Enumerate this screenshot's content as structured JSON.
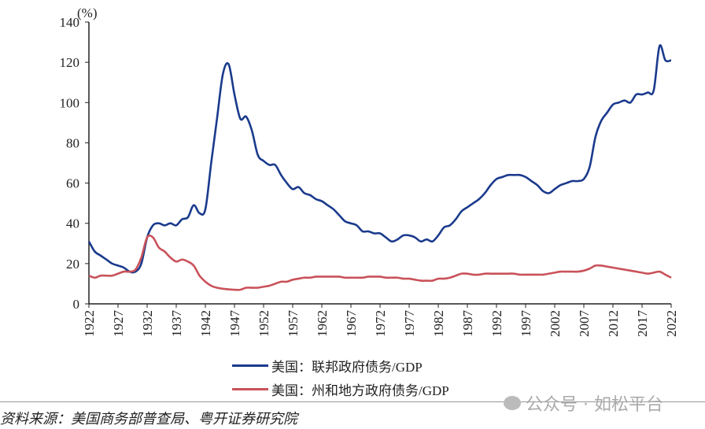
{
  "chart_data": {
    "type": "line",
    "ylabel": "(%)",
    "ylim": [
      0,
      140
    ],
    "yticks": [
      0,
      20,
      40,
      60,
      80,
      100,
      120,
      140
    ],
    "xlim": [
      1922,
      2022
    ],
    "xticks": [
      "1922",
      "1927",
      "1932",
      "1937",
      "1942",
      "1947",
      "1952",
      "1957",
      "1962",
      "1967",
      "1972",
      "1977",
      "1982",
      "1987",
      "1992",
      "1997",
      "2002",
      "2007",
      "2012",
      "2017",
      "2022"
    ],
    "grid": false,
    "legend_position": "bottom",
    "x_start": 1922,
    "series": [
      {
        "name": "美国：联邦政府债务/GDP",
        "color": "#1a3a8c",
        "values": [
          31,
          26,
          24,
          22,
          20,
          19,
          18,
          16,
          16,
          20,
          33,
          39,
          40,
          39,
          40,
          39,
          42,
          43,
          49,
          45,
          47,
          70,
          92,
          114,
          119,
          104,
          92,
          93,
          86,
          74,
          71,
          69,
          69,
          64,
          60,
          57,
          58,
          55,
          54,
          52,
          51,
          49,
          47,
          44,
          41,
          40,
          39,
          36,
          36,
          35,
          35,
          33,
          31,
          32,
          34,
          34,
          33,
          31,
          32,
          31,
          34,
          38,
          39,
          42,
          46,
          48,
          50,
          52,
          55,
          59,
          62,
          63,
          64,
          64,
          64,
          63,
          61,
          59,
          56,
          55,
          57,
          59,
          60,
          61,
          61,
          62,
          68,
          83,
          91,
          95,
          99,
          100,
          101,
          100,
          104,
          104,
          105,
          106,
          128,
          121,
          121
        ]
      },
      {
        "name": "美国：州和地方政府债务/GDP",
        "color": "#c9525a",
        "values": [
          14,
          13,
          14,
          14,
          14,
          15,
          16,
          16,
          17,
          23,
          33,
          33,
          28,
          26,
          23,
          21,
          22,
          21,
          19,
          14,
          11,
          9,
          8,
          7.5,
          7.2,
          7,
          7,
          8,
          8,
          8,
          8.5,
          9,
          10,
          11,
          11,
          12,
          12.5,
          13,
          13,
          13.5,
          13.5,
          13.5,
          13.5,
          13.5,
          13,
          13,
          13,
          13,
          13.5,
          13.5,
          13.5,
          13,
          13,
          13,
          12.5,
          12.5,
          12,
          11.5,
          11.5,
          11.5,
          12.5,
          12.5,
          13,
          14,
          15,
          15,
          14.5,
          14.5,
          15,
          15,
          15,
          15,
          15,
          15,
          14.5,
          14.5,
          14.5,
          14.5,
          14.5,
          15,
          15.5,
          16,
          16,
          16,
          16,
          16.5,
          17.5,
          19,
          19,
          18.5,
          18,
          17.5,
          17,
          16.5,
          16,
          15.5,
          15,
          15.5,
          16,
          14.5,
          13
        ]
      }
    ]
  },
  "source": "资料来源：美国商务部普查局、粤开证券研究院",
  "watermark": "公众号 · 如松平台"
}
